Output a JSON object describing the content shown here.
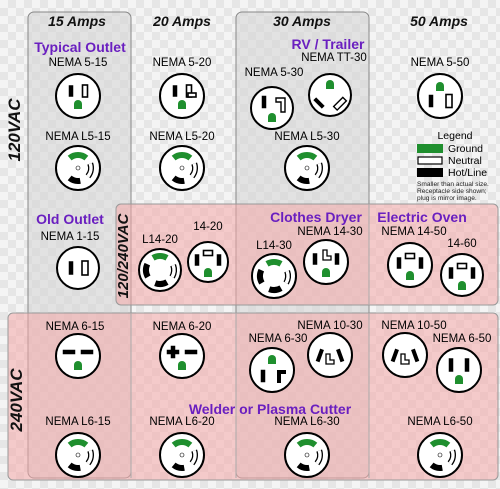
{
  "columns": [
    "15 Amps",
    "20 Amps",
    "30 Amps",
    "50 Amps"
  ],
  "rows": [
    "120VAC",
    "120/240VAC",
    "240VAC"
  ],
  "groups": {
    "typical_outlet": "Typical Outlet",
    "rv_trailer": "RV / Trailer",
    "old_outlet": "Old Outlet",
    "clothes_dryer": "Clothes Dryer",
    "electric_oven": "Electric Oven",
    "welder": "Welder or Plasma Cutter"
  },
  "legend": {
    "title": "Legend",
    "ground": "Ground",
    "neutral": "Neutral",
    "hot": "Hot/Line",
    "note": [
      "Smaller than actual size.",
      "Receptacle side shown;",
      "plug is mirror image."
    ]
  },
  "colors": {
    "ground": "#1f8f2e",
    "purple_text": "#6a1fc0",
    "group_box_15a": "#d4d4d4",
    "pink_region": "#f7c2c2"
  },
  "receptacles": [
    {
      "label": "NEMA 5-15"
    },
    {
      "label": "NEMA 5-20"
    },
    {
      "label": "NEMA 5-30"
    },
    {
      "label": "NEMA TT-30"
    },
    {
      "label": "NEMA 5-50"
    },
    {
      "label": "NEMA L5-15"
    },
    {
      "label": "NEMA L5-20"
    },
    {
      "label": "NEMA L5-30"
    },
    {
      "label": "NEMA 1-15"
    },
    {
      "label": "L14-20"
    },
    {
      "label": "14-20"
    },
    {
      "label": "L14-30"
    },
    {
      "label": "NEMA 14-30"
    },
    {
      "label": "NEMA 14-50"
    },
    {
      "label": "14-60"
    },
    {
      "label": "NEMA 6-15"
    },
    {
      "label": "NEMA 6-20"
    },
    {
      "label": "NEMA 6-30"
    },
    {
      "label": "NEMA 10-30"
    },
    {
      "label": "NEMA 10-50"
    },
    {
      "label": "NEMA 6-50"
    },
    {
      "label": "NEMA L6-15"
    },
    {
      "label": "NEMA L6-20"
    },
    {
      "label": "NEMA L6-30"
    },
    {
      "label": "NEMA L6-50"
    }
  ]
}
